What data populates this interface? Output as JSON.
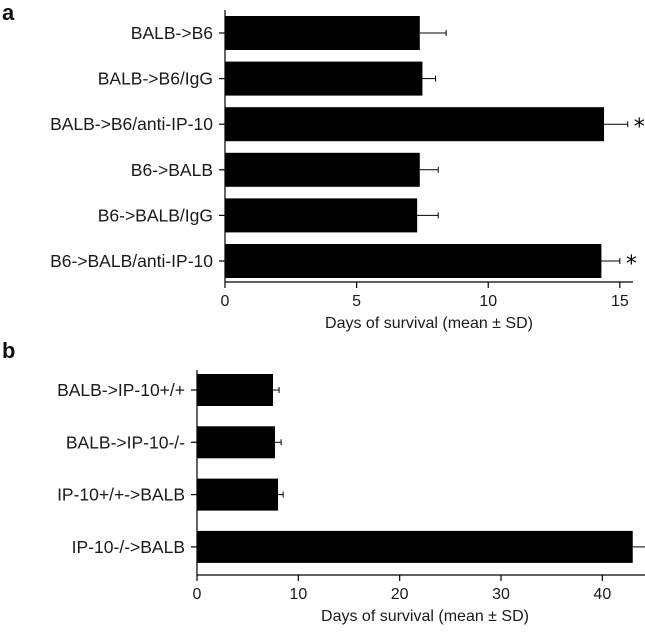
{
  "chart_data": [
    {
      "panel": "a",
      "type": "bar",
      "orientation": "horizontal",
      "categories": [
        "BALB->B6",
        "BALB->B6/IgG",
        "BALB->B6/anti-IP-10",
        "B6->BALB",
        "B6->BALB/IgG",
        "B6->BALB/anti-IP-10"
      ],
      "values": [
        7.4,
        7.5,
        14.4,
        7.4,
        7.3,
        14.3
      ],
      "errors": [
        1.0,
        0.5,
        0.9,
        0.7,
        0.8,
        0.7
      ],
      "significance": [
        "",
        "",
        "*",
        "",
        "",
        "*"
      ],
      "xlabel": "Days of survival (mean ± SD)",
      "xlim": [
        0,
        15.5
      ],
      "xticks": [
        0,
        5,
        10,
        15
      ],
      "grid": false,
      "bar_color": "#000000"
    },
    {
      "panel": "b",
      "type": "bar",
      "orientation": "horizontal",
      "categories": [
        "BALB->IP-10+/+",
        "BALB->IP-10-/-",
        "IP-10+/+->BALB",
        "IP-10-/->BALB"
      ],
      "values": [
        7.5,
        7.7,
        8.0,
        43.0
      ],
      "errors": [
        0.6,
        0.6,
        0.5,
        1.5
      ],
      "significance": [
        "",
        "",
        "",
        "*"
      ],
      "xlabel": "Days of survival (mean ± SD)",
      "xlim": [
        0,
        45
      ],
      "xticks": [
        0,
        10,
        20,
        30,
        40
      ],
      "grid": false,
      "bar_color": "#000000"
    }
  ]
}
